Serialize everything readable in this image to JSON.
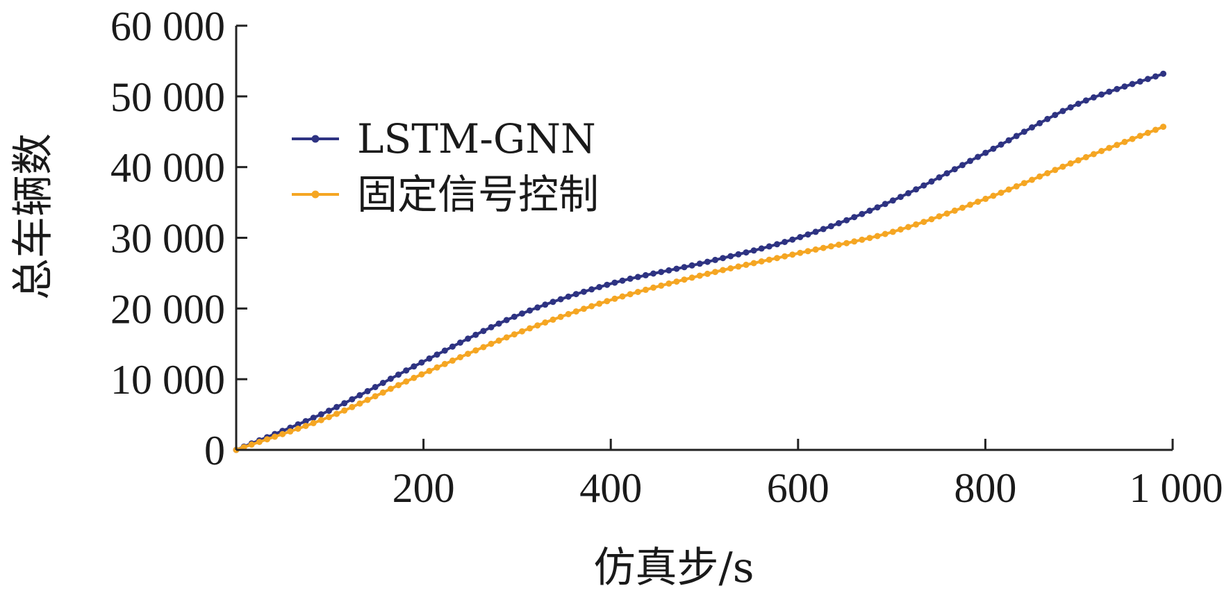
{
  "chart_data": {
    "type": "line",
    "xlabel": "仿真步/s",
    "ylabel": "总车辆数",
    "xlim": [
      0,
      1000
    ],
    "ylim": [
      0,
      60000
    ],
    "x_ticks": [
      200,
      400,
      600,
      800,
      1000
    ],
    "x_tick_labels": [
      "200",
      "400",
      "600",
      "800",
      "1 000"
    ],
    "y_ticks": [
      0,
      10000,
      20000,
      30000,
      40000,
      50000,
      60000
    ],
    "y_tick_labels": [
      "0",
      "10 000",
      "20 000",
      "30 000",
      "40 000",
      "50 000",
      "60 000"
    ],
    "grid": false,
    "legend_position": "upper-left",
    "x": [
      0,
      100,
      200,
      300,
      400,
      500,
      600,
      700,
      800,
      900,
      990
    ],
    "series": [
      {
        "name": "LSTM-GNN",
        "color": "#2e3382",
        "marker": "circle",
        "values": [
          0,
          5600,
          12500,
          19000,
          23500,
          26500,
          30000,
          35200,
          42000,
          49000,
          53200
        ]
      },
      {
        "name": "固定信号控制",
        "color": "#f5a623",
        "marker": "circle",
        "values": [
          0,
          4700,
          10800,
          16500,
          21200,
          24800,
          27800,
          30800,
          35500,
          41000,
          45700
        ]
      }
    ]
  }
}
